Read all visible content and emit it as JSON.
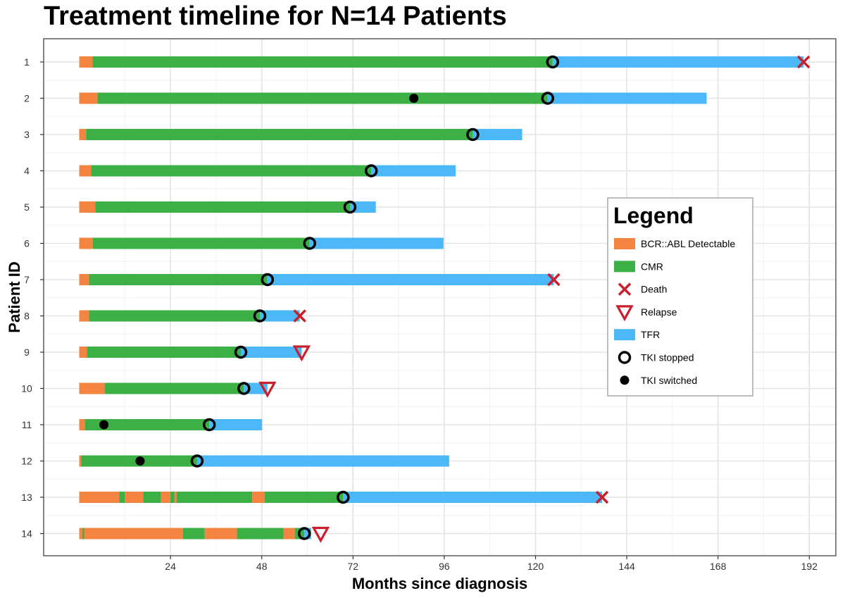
{
  "chart_data": {
    "type": "timeline",
    "title": "Treatment timeline for N=14 Patients",
    "xlabel": "Months since diagnosis",
    "ylabel": "Patient ID",
    "xlim": [
      -8,
      198
    ],
    "x_ticks": [
      24,
      48,
      72,
      96,
      120,
      144,
      168,
      192
    ],
    "grid": true,
    "legend_position": "right",
    "colors": {
      "BCR::ABL Detectable": "#F4843F",
      "CMR": "#3CB044",
      "TFR": "#4DB8F8",
      "marker_red": "#C8202C",
      "marker_black": "#000000"
    },
    "legend": {
      "title": "Legend",
      "items": [
        {
          "label": "BCR::ABL Detectable",
          "kind": "bar",
          "color": "#F4843F"
        },
        {
          "label": "CMR",
          "kind": "bar",
          "color": "#3CB044"
        },
        {
          "label": "Death",
          "kind": "x"
        },
        {
          "label": "Relapse",
          "kind": "triangle"
        },
        {
          "label": "TFR",
          "kind": "bar",
          "color": "#4DB8F8"
        },
        {
          "label": "TKI stopped",
          "kind": "ring"
        },
        {
          "label": "TKI switched",
          "kind": "dot"
        }
      ]
    },
    "patients": [
      {
        "id": "1",
        "segments": [
          {
            "state": "BCR::ABL Detectable",
            "start": 0,
            "end": 3.5
          },
          {
            "state": "CMR",
            "start": 3.5,
            "end": 124.5
          },
          {
            "state": "TFR",
            "start": 124.5,
            "end": 190.5
          }
        ],
        "tki_stopped": [
          124.5
        ],
        "tki_switched": [],
        "death": 190.5,
        "relapse": null
      },
      {
        "id": "2",
        "segments": [
          {
            "state": "BCR::ABL Detectable",
            "start": 0,
            "end": 4.8
          },
          {
            "state": "CMR",
            "start": 4.8,
            "end": 123.2
          },
          {
            "state": "TFR",
            "start": 123.2,
            "end": 165
          }
        ],
        "tki_stopped": [
          123.2
        ],
        "tki_switched": [
          88
        ],
        "death": null,
        "relapse": null
      },
      {
        "id": "3",
        "segments": [
          {
            "state": "BCR::ABL Detectable",
            "start": 0,
            "end": 1.8
          },
          {
            "state": "CMR",
            "start": 1.8,
            "end": 103.5
          },
          {
            "state": "TFR",
            "start": 103.5,
            "end": 116.5
          }
        ],
        "tki_stopped": [
          103.5
        ],
        "tki_switched": [],
        "death": null,
        "relapse": null
      },
      {
        "id": "4",
        "segments": [
          {
            "state": "BCR::ABL Detectable",
            "start": 0,
            "end": 3.1
          },
          {
            "state": "CMR",
            "start": 3.1,
            "end": 76.8
          },
          {
            "state": "TFR",
            "start": 76.8,
            "end": 99
          }
        ],
        "tki_stopped": [
          76.8
        ],
        "tki_switched": [],
        "death": null,
        "relapse": null
      },
      {
        "id": "5",
        "segments": [
          {
            "state": "BCR::ABL Detectable",
            "start": 0,
            "end": 4.2
          },
          {
            "state": "CMR",
            "start": 4.2,
            "end": 71.2
          },
          {
            "state": "TFR",
            "start": 71.2,
            "end": 78
          }
        ],
        "tki_stopped": [
          71.2
        ],
        "tki_switched": [],
        "death": null,
        "relapse": null
      },
      {
        "id": "6",
        "segments": [
          {
            "state": "BCR::ABL Detectable",
            "start": 0,
            "end": 3.6
          },
          {
            "state": "CMR",
            "start": 3.6,
            "end": 60.6
          },
          {
            "state": "TFR",
            "start": 60.6,
            "end": 95.8
          }
        ],
        "tki_stopped": [
          60.6
        ],
        "tki_switched": [],
        "death": null,
        "relapse": null
      },
      {
        "id": "7",
        "segments": [
          {
            "state": "BCR::ABL Detectable",
            "start": 0,
            "end": 2.6
          },
          {
            "state": "CMR",
            "start": 2.6,
            "end": 49.5
          },
          {
            "state": "TFR",
            "start": 49.5,
            "end": 124.8
          }
        ],
        "tki_stopped": [
          49.5
        ],
        "tki_switched": [],
        "death": 124.8,
        "relapse": null
      },
      {
        "id": "8",
        "segments": [
          {
            "state": "BCR::ABL Detectable",
            "start": 0,
            "end": 2.6
          },
          {
            "state": "CMR",
            "start": 2.6,
            "end": 47.5
          },
          {
            "state": "TFR",
            "start": 47.5,
            "end": 58
          }
        ],
        "tki_stopped": [
          47.5
        ],
        "tki_switched": [],
        "death": 58,
        "relapse": null
      },
      {
        "id": "9",
        "segments": [
          {
            "state": "BCR::ABL Detectable",
            "start": 0,
            "end": 2
          },
          {
            "state": "CMR",
            "start": 2,
            "end": 42.5
          },
          {
            "state": "TFR",
            "start": 42.5,
            "end": 58.5
          }
        ],
        "tki_stopped": [
          42.5
        ],
        "tki_switched": [],
        "death": null,
        "relapse": 58.5
      },
      {
        "id": "10",
        "segments": [
          {
            "state": "BCR::ABL Detectable",
            "start": 0,
            "end": 6.7
          },
          {
            "state": "CMR",
            "start": 6.7,
            "end": 43.3
          },
          {
            "state": "TFR",
            "start": 43.3,
            "end": 49.5
          }
        ],
        "tki_stopped": [
          43.3
        ],
        "tki_switched": [],
        "death": null,
        "relapse": 49.5
      },
      {
        "id": "11",
        "segments": [
          {
            "state": "BCR::ABL Detectable",
            "start": 0,
            "end": 1.5
          },
          {
            "state": "CMR",
            "start": 1.5,
            "end": 34.2
          },
          {
            "state": "TFR",
            "start": 34.2,
            "end": 48.1
          }
        ],
        "tki_stopped": [
          34.2
        ],
        "tki_switched": [
          6.5
        ],
        "death": null,
        "relapse": null
      },
      {
        "id": "12",
        "segments": [
          {
            "state": "BCR::ABL Detectable",
            "start": 0,
            "end": 0.5
          },
          {
            "state": "CMR",
            "start": 0.5,
            "end": 31
          },
          {
            "state": "TFR",
            "start": 31,
            "end": 97.3
          }
        ],
        "tki_stopped": [
          31
        ],
        "tki_switched": [
          16
        ],
        "death": null,
        "relapse": null
      },
      {
        "id": "13",
        "segments": [
          {
            "state": "BCR::ABL Detectable",
            "start": 0,
            "end": 10.5
          },
          {
            "state": "CMR",
            "start": 10.5,
            "end": 12
          },
          {
            "state": "BCR::ABL Detectable",
            "start": 12,
            "end": 16.8
          },
          {
            "state": "CMR",
            "start": 16.8,
            "end": 21.5
          },
          {
            "state": "BCR::ABL Detectable",
            "start": 21.5,
            "end": 24
          },
          {
            "state": "CMR",
            "start": 24,
            "end": 25
          },
          {
            "state": "BCR::ABL Detectable",
            "start": 25,
            "end": 25.6
          },
          {
            "state": "CMR",
            "start": 25.6,
            "end": 45.5
          },
          {
            "state": "BCR::ABL Detectable",
            "start": 45.5,
            "end": 48.8
          },
          {
            "state": "CMR",
            "start": 48.8,
            "end": 69.4
          },
          {
            "state": "TFR",
            "start": 69.4,
            "end": 137.5
          }
        ],
        "tki_stopped": [
          69.4
        ],
        "tki_switched": [],
        "death": 137.5,
        "relapse": null
      },
      {
        "id": "14",
        "segments": [
          {
            "state": "BCR::ABL Detectable",
            "start": 0,
            "end": 0.8
          },
          {
            "state": "CMR",
            "start": 0.8,
            "end": 1.3
          },
          {
            "state": "BCR::ABL Detectable",
            "start": 1.3,
            "end": 27.3
          },
          {
            "state": "CMR",
            "start": 27.3,
            "end": 33
          },
          {
            "state": "BCR::ABL Detectable",
            "start": 33,
            "end": 41.5
          },
          {
            "state": "CMR",
            "start": 41.5,
            "end": 53.7
          },
          {
            "state": "BCR::ABL Detectable",
            "start": 53.7,
            "end": 56.7
          },
          {
            "state": "CMR",
            "start": 56.7,
            "end": 59.2
          },
          {
            "state": "TFR",
            "start": 59.2,
            "end": 61
          }
        ],
        "tki_stopped": [
          59.2
        ],
        "tki_switched": [],
        "death": null,
        "relapse": 63.5
      }
    ]
  }
}
